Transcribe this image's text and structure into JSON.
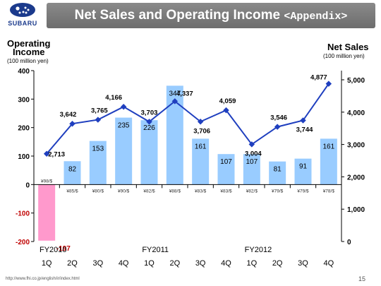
{
  "header": {
    "logo_text": "SUBARU",
    "title": "Net Sales and Operating Income ",
    "title_suffix": "<Appendix>"
  },
  "left_axis": {
    "title_line1": "Operating",
    "title_line2": "Income",
    "unit": "(100 million yen)"
  },
  "right_axis": {
    "title": "Net Sales",
    "unit": "(100 million yen)"
  },
  "footer": {
    "url": "http://www.fhi.co.jp/english/ir/index.html",
    "page": "15"
  },
  "colors": {
    "bar": "#99ccff",
    "bar_negative": "#ff99cc",
    "line": "#1f3fbf",
    "negative_label": "#c00000"
  },
  "chart_data": {
    "type": "bar",
    "categories": [
      "1Q",
      "2Q",
      "3Q",
      "4Q",
      "1Q",
      "2Q",
      "3Q",
      "4Q",
      "1Q",
      "2Q",
      "3Q",
      "4Q"
    ],
    "fiscal_years": [
      {
        "label": "FY2010",
        "start": 0
      },
      {
        "label": "FY2011",
        "start": 4
      },
      {
        "label": "FY2012",
        "start": 8
      }
    ],
    "exchange_rates": [
      "¥98/$",
      "¥85/$",
      "¥80/$",
      "¥90/$",
      "¥82/$",
      "¥88/$",
      "¥83/$",
      "¥83/$",
      "¥82/$",
      "¥79/$",
      "¥79/$",
      "¥78/$"
    ],
    "series": [
      {
        "name": "Operating Income",
        "type": "bar",
        "axis": "left",
        "values": [
          -197,
          82,
          153,
          235,
          226,
          347,
          161,
          107,
          107,
          81,
          91,
          161
        ],
        "labels": [
          "-197",
          "82",
          "153",
          "235",
          "226",
          "347",
          "161",
          "107",
          "107",
          "81",
          "91",
          "161"
        ]
      },
      {
        "name": "Net Sales",
        "type": "line",
        "axis": "right",
        "values": [
          2713,
          3642,
          3765,
          4166,
          3703,
          4337,
          3706,
          4059,
          3004,
          3546,
          3744,
          4877
        ],
        "labels": [
          "2,713",
          "3,642",
          "3,765",
          "4,166",
          "3,703",
          "4,337",
          "3,706",
          "4,059",
          "3,004",
          "3,546",
          "3,744",
          "4,877"
        ]
      }
    ],
    "left_axis": {
      "ylim": [
        -200,
        400
      ],
      "ticks": [
        -200,
        -100,
        0,
        100,
        200,
        300,
        400
      ],
      "tick_labels": [
        "-200",
        "-100",
        "0",
        "100",
        "200",
        "300",
        "400"
      ]
    },
    "right_axis": {
      "ylim": [
        0,
        5000
      ],
      "ticks": [
        0,
        1000,
        2000,
        3000,
        4000,
        5000
      ],
      "tick_labels": [
        "0",
        "1,000",
        "2,000",
        "3,000",
        "4,000",
        "5,000"
      ]
    },
    "grid": false,
    "legend": "none"
  }
}
